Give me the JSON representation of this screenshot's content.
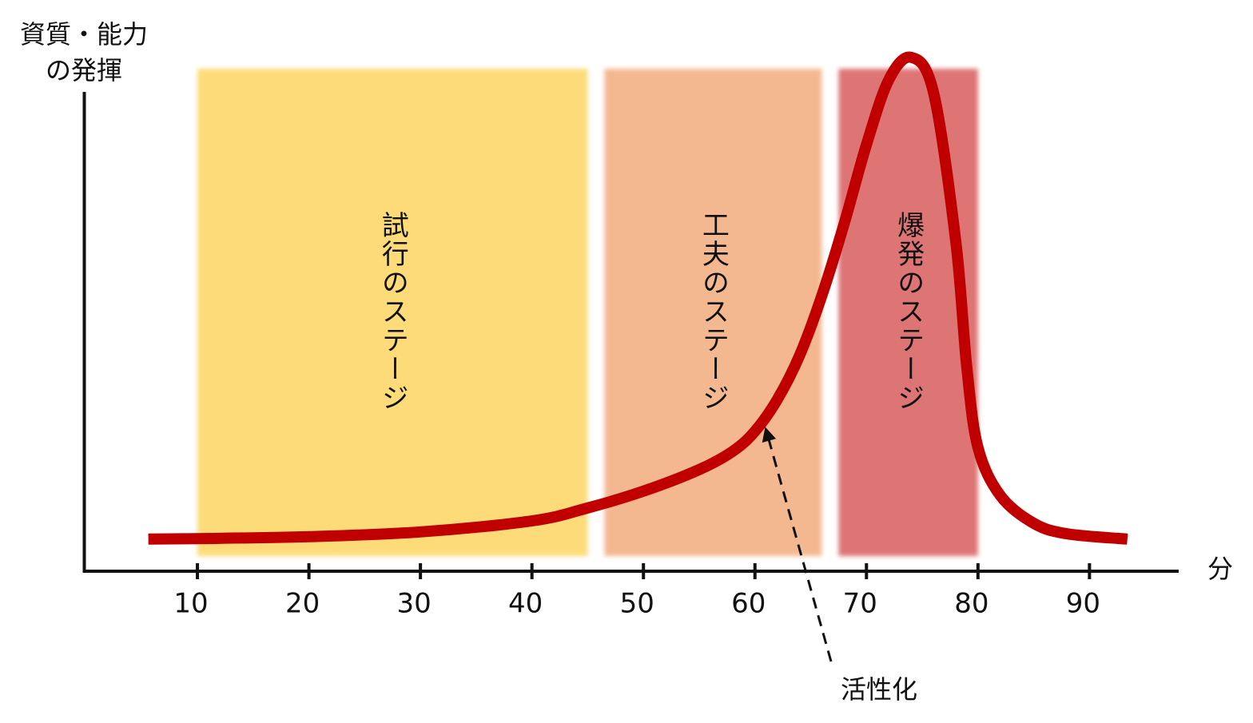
{
  "chart_data": {
    "type": "line",
    "y_label": [
      "資質・能力",
      "の発揮"
    ],
    "x_label": "分",
    "xlim": [
      0,
      98
    ],
    "ylim": [
      0,
      100
    ],
    "xticks": [
      10,
      20,
      30,
      40,
      50,
      60,
      70,
      80,
      90
    ],
    "bands": [
      {
        "label": "試行のステージ",
        "from": 10,
        "to": 45,
        "color": "#fddb78"
      },
      {
        "label": "工夫のステージ",
        "from": 46.5,
        "to": 66,
        "color": "#f4b891"
      },
      {
        "label": "爆発のステージ",
        "from": 67.5,
        "to": 80,
        "color": "#de7474"
      }
    ],
    "series": [
      {
        "color": "#c00000",
        "x": [
          5.6,
          10,
          20,
          30,
          40,
          45,
          50,
          55,
          58,
          60,
          62,
          64,
          66,
          68,
          70,
          72,
          74,
          76,
          78,
          79,
          80,
          82,
          85,
          88,
          93.4
        ],
        "values": [
          6.7,
          6.8,
          7.2,
          8.2,
          10.5,
          13.2,
          16.7,
          21.2,
          25,
          29.2,
          35.8,
          45,
          57.5,
          72.5,
          89,
          102.5,
          107.2,
          100,
          69,
          42.5,
          25.8,
          15.8,
          10,
          7.8,
          6.7
        ]
      }
    ],
    "annotation": "活性化"
  }
}
